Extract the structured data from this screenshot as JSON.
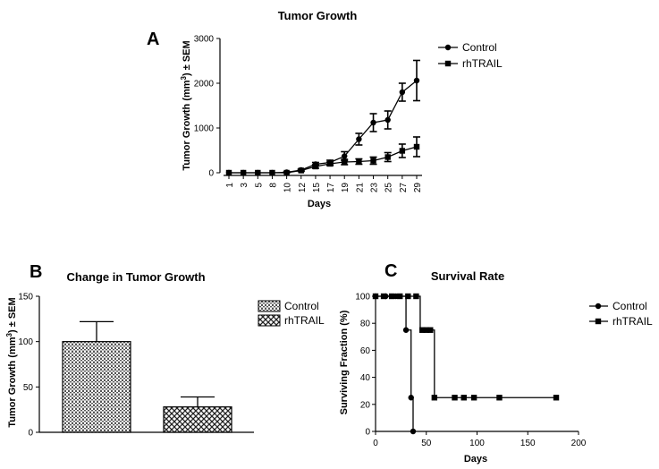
{
  "panels": {
    "A": "A",
    "B": "B",
    "C": "C"
  },
  "chart_data": [
    {
      "type": "line",
      "title": "Tumor Growth",
      "xlabel": "Days",
      "ylabel": "Tumor Growth (mm3) ± SEM",
      "ylabel_parts": {
        "before": "Tumor Growth (mm",
        "sup": "3",
        "after": ") ± SEM"
      },
      "ylim": [
        0,
        3000
      ],
      "yticks": [
        0,
        1000,
        2000,
        3000
      ],
      "categories": [
        "1",
        "3",
        "5",
        "8",
        "10",
        "12",
        "15",
        "17",
        "19",
        "21",
        "23",
        "25",
        "27",
        "29"
      ],
      "legend_position": "top-right",
      "series": [
        {
          "name": "Control",
          "marker": "circle",
          "values": [
            0,
            0,
            0,
            0,
            10,
            60,
            190,
            230,
            370,
            750,
            1120,
            1180,
            1800,
            2060
          ],
          "errors": [
            0,
            0,
            0,
            0,
            10,
            20,
            40,
            50,
            100,
            130,
            200,
            200,
            200,
            450
          ]
        },
        {
          "name": "rhTRAIL",
          "marker": "square",
          "values": [
            0,
            0,
            0,
            0,
            0,
            50,
            140,
            200,
            240,
            250,
            270,
            350,
            490,
            580
          ],
          "errors": [
            0,
            0,
            0,
            0,
            0,
            20,
            40,
            40,
            60,
            60,
            80,
            100,
            150,
            220
          ]
        }
      ]
    },
    {
      "type": "bar",
      "title": "Change in Tumor Growth",
      "xlabel": "",
      "ylabel": "Tumor Growth (mm3) ± SEM",
      "ylabel_parts": {
        "before": "Tumor Growth (mm",
        "sup": "3",
        "after": ") ± SEM"
      },
      "ylim": [
        0,
        150
      ],
      "yticks": [
        0,
        50,
        100,
        150
      ],
      "legend_position": "top-right",
      "categories": [
        "Control",
        "rhTRAIL"
      ],
      "values": [
        100,
        28
      ],
      "errors": [
        22,
        11
      ]
    },
    {
      "type": "line",
      "title": "Survival Rate",
      "xlabel": "Days",
      "ylabel": "Surviving Fraction (%)",
      "xlim": [
        0,
        200
      ],
      "xticks": [
        0,
        50,
        100,
        150,
        200
      ],
      "ylim": [
        0,
        100
      ],
      "yticks": [
        0,
        20,
        40,
        60,
        80,
        100
      ],
      "legend_position": "top-right",
      "series": [
        {
          "name": "Control",
          "marker": "circle",
          "steps": [
            [
              0,
              100
            ],
            [
              30,
              100
            ],
            [
              30,
              75
            ],
            [
              35,
              75
            ],
            [
              35,
              25
            ],
            [
              37,
              25
            ],
            [
              37,
              0
            ]
          ],
          "markers": [
            [
              0,
              100
            ],
            [
              10,
              100
            ],
            [
              20,
              100
            ],
            [
              30,
              75
            ],
            [
              35,
              25
            ],
            [
              37,
              0
            ]
          ]
        },
        {
          "name": "rhTRAIL",
          "marker": "square",
          "steps": [
            [
              0,
              100
            ],
            [
              44,
              100
            ],
            [
              44,
              75
            ],
            [
              58,
              75
            ],
            [
              58,
              25
            ],
            [
              178,
              25
            ]
          ],
          "markers": [
            [
              0,
              100
            ],
            [
              8,
              100
            ],
            [
              16,
              100
            ],
            [
              24,
              100
            ],
            [
              32,
              100
            ],
            [
              40,
              100
            ],
            [
              46,
              75
            ],
            [
              50,
              75
            ],
            [
              54,
              75
            ],
            [
              58,
              25
            ],
            [
              78,
              25
            ],
            [
              87,
              25
            ],
            [
              97,
              25
            ],
            [
              122,
              25
            ],
            [
              178,
              25
            ]
          ]
        }
      ]
    }
  ]
}
